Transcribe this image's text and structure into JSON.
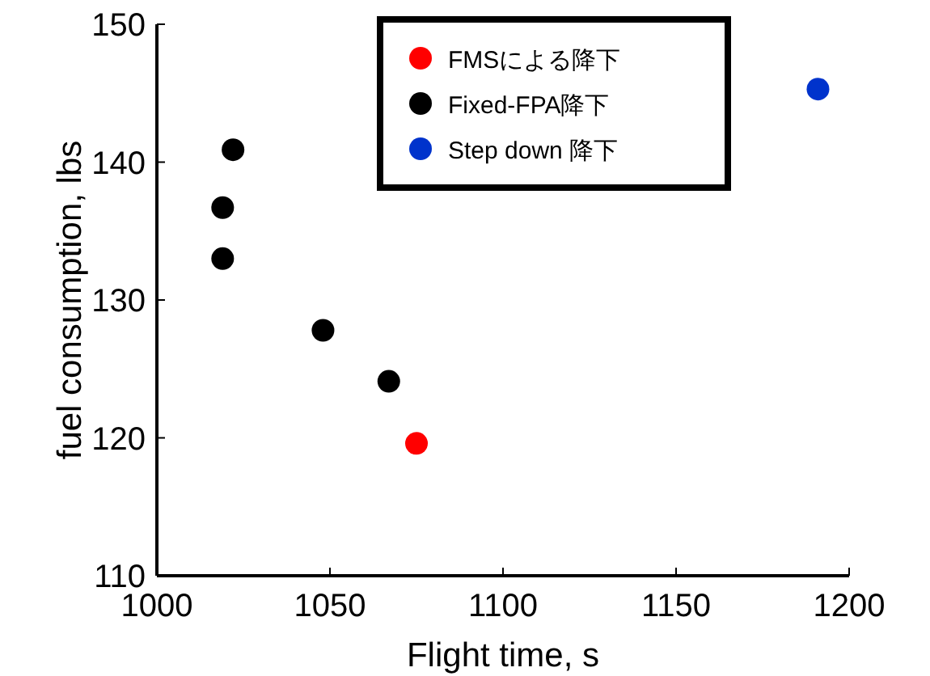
{
  "chart_data": {
    "type": "scatter",
    "xlabel": "Flight time, s",
    "ylabel": "fuel consumption, lbs",
    "xlim": [
      1000,
      1200
    ],
    "xticks": [
      1000,
      1050,
      1100,
      1150,
      1200
    ],
    "ylim": [
      110,
      150
    ],
    "yticks": [
      110,
      120,
      130,
      140,
      150
    ],
    "grid": false,
    "legend": "top",
    "marker": "circle",
    "series": [
      {
        "name": "FMSによる降下",
        "color": "#ff0000",
        "x": [
          1075
        ],
        "values": [
          119.6
        ]
      },
      {
        "name": "Fixed-FPA降下",
        "color": "#000000",
        "x": [
          1022,
          1019,
          1019,
          1048,
          1067
        ],
        "values": [
          140.9,
          136.7,
          133.0,
          127.8,
          124.1
        ]
      },
      {
        "name": "Step down 降下",
        "color": "#0033cc",
        "x": [
          1191
        ],
        "values": [
          145.3
        ]
      }
    ]
  }
}
